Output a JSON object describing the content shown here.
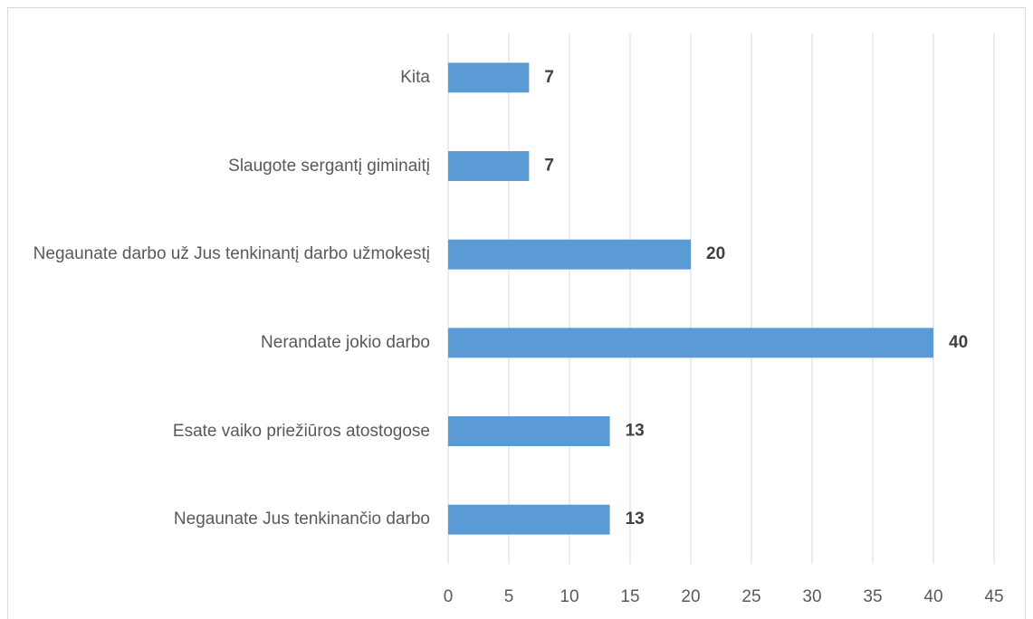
{
  "chart_data": {
    "type": "barh",
    "categories": [
      "Kita",
      "Slaugote sergantį giminaitį",
      "Negaunate darbo už Jus tenkinantį darbo užmokestį",
      "Nerandate jokio darbo",
      "Esate vaiko priežiūros atostogose",
      "Negaunate Jus tenkinančio darbo"
    ],
    "values": [
      6.67,
      6.67,
      20,
      40,
      13.33,
      13.33
    ],
    "value_labels": [
      "7",
      "7",
      "20",
      "40",
      "13",
      "13"
    ],
    "color": "#5b9bd5",
    "xlim": [
      0,
      45
    ],
    "xticks": [
      0,
      5,
      10,
      15,
      20,
      25,
      30,
      35,
      40,
      45
    ],
    "grid": true
  }
}
